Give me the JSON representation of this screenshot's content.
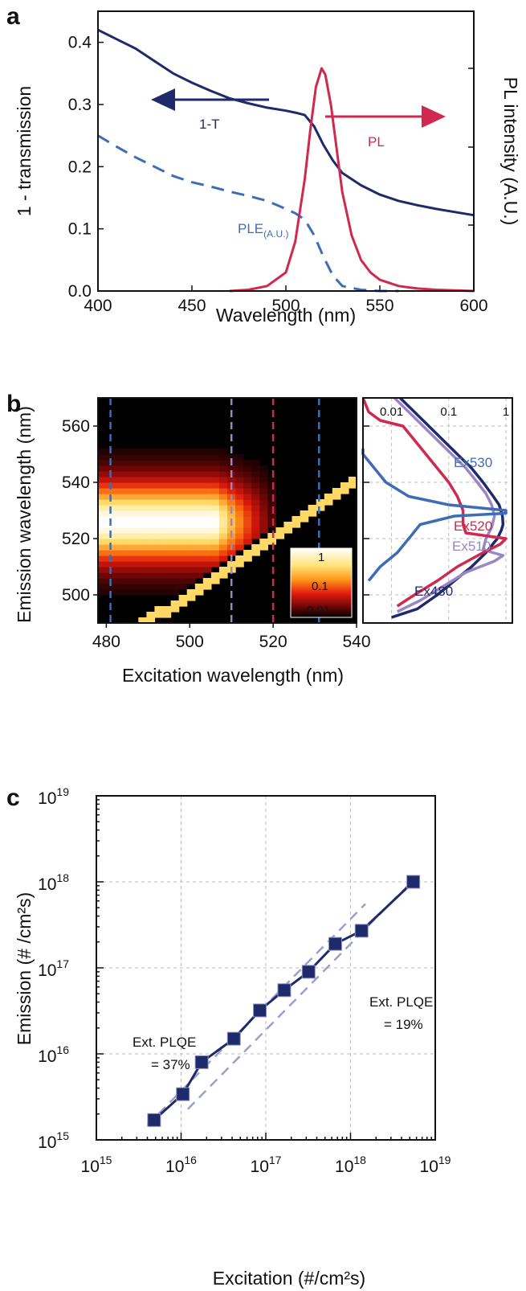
{
  "colors": {
    "navy": "#1f2a6b",
    "crimson": "#d0284f",
    "steel": "#3f6db5",
    "lavender": "#9a86c4",
    "purple": "#a78fd0"
  },
  "chart_data": [
    {
      "panel": "a",
      "type": "line",
      "xlabel": "Wavelength (nm)",
      "ylabel": "1 - transmission",
      "ylabel_right": "PL intensity (A.U.)",
      "xlim": [
        400,
        600
      ],
      "ylim": [
        0,
        0.45
      ],
      "x_ticks": [
        "400",
        "450",
        "500",
        "550",
        "600"
      ],
      "y_ticks": [
        "0.0",
        "0.1",
        "0.2",
        "0.3",
        "0.4"
      ],
      "series": [
        {
          "name": "1-T",
          "x": [
            400,
            410,
            420,
            430,
            440,
            450,
            460,
            470,
            480,
            490,
            500,
            505,
            510,
            515,
            520,
            525,
            530,
            540,
            550,
            560,
            570,
            580,
            590,
            600
          ],
          "y": [
            0.42,
            0.405,
            0.39,
            0.37,
            0.35,
            0.335,
            0.322,
            0.31,
            0.302,
            0.295,
            0.29,
            0.287,
            0.283,
            0.265,
            0.235,
            0.21,
            0.19,
            0.17,
            0.155,
            0.145,
            0.138,
            0.132,
            0.127,
            0.122
          ]
        },
        {
          "name": "PLE",
          "x": [
            400,
            410,
            420,
            430,
            440,
            450,
            460,
            470,
            480,
            490,
            500,
            505,
            510,
            515,
            520,
            525,
            530,
            540,
            550,
            560
          ],
          "y": [
            0.25,
            0.232,
            0.215,
            0.2,
            0.185,
            0.175,
            0.168,
            0.16,
            0.153,
            0.145,
            0.132,
            0.125,
            0.115,
            0.09,
            0.055,
            0.025,
            0.008,
            0.002,
            0.0,
            0.0
          ]
        },
        {
          "name": "PL",
          "x": [
            470,
            480,
            490,
            500,
            505,
            510,
            513,
            516,
            519,
            521,
            524,
            527,
            530,
            535,
            540,
            545,
            550,
            560,
            570,
            580,
            590,
            600
          ],
          "y": [
            0.0,
            0.002,
            0.008,
            0.03,
            0.08,
            0.18,
            0.26,
            0.33,
            0.36,
            0.35,
            0.3,
            0.23,
            0.16,
            0.09,
            0.05,
            0.03,
            0.018,
            0.008,
            0.004,
            0.002,
            0.001,
            0.0
          ]
        }
      ],
      "annotations": {
        "t_label": "1-T",
        "pl_label": "PL",
        "ple_label": "PLE",
        "ple_sub": "(A.U.)"
      }
    },
    {
      "panel": "b",
      "type": "heatmap",
      "xlabel": "Excitation wavelength (nm)",
      "ylabel": "Emission wavelength (nm)",
      "xlim": [
        478,
        540
      ],
      "ylim": [
        490,
        570
      ],
      "x_ticks": [
        "480",
        "500",
        "520",
        "540"
      ],
      "y_ticks": [
        "500",
        "520",
        "540",
        "560"
      ],
      "colorbar_ticks": [
        "1",
        "0.1",
        "0.01"
      ],
      "dashed_excitations": [
        481,
        510,
        520,
        531
      ],
      "side_x_ticks": [
        "0.01",
        "0.1",
        "1"
      ],
      "side_series": [
        {
          "name": "Ex480",
          "emission": [
            492,
            495,
            500,
            505,
            510,
            515,
            520,
            523,
            525,
            528,
            532,
            535,
            540,
            545,
            550,
            555,
            560,
            565,
            570
          ],
          "log_intensity": [
            -2,
            -1.55,
            -1.2,
            -0.9,
            -0.6,
            -0.35,
            -0.15,
            -0.08,
            -0.05,
            -0.06,
            -0.12,
            -0.22,
            -0.4,
            -0.6,
            -0.85,
            -1.1,
            -1.35,
            -1.6,
            -1.85
          ]
        },
        {
          "name": "Ex510",
          "emission": [
            494,
            498,
            503,
            508,
            512,
            514,
            516,
            520,
            524,
            528,
            532,
            536,
            540,
            545,
            550,
            555,
            560,
            565,
            570
          ],
          "log_intensity": [
            -1.9,
            -1.5,
            -1.1,
            -0.7,
            -0.2,
            -0.05,
            -0.4,
            -0.35,
            -0.25,
            -0.2,
            -0.25,
            -0.35,
            -0.5,
            -0.7,
            -0.95,
            -1.2,
            -1.45,
            -1.7,
            -1.95
          ]
        },
        {
          "name": "Ex520",
          "emission": [
            496,
            500,
            505,
            510,
            515,
            518,
            520,
            522,
            525,
            530,
            535,
            540,
            545,
            550,
            555,
            560,
            562,
            565,
            570
          ],
          "log_intensity": [
            -1.9,
            -1.6,
            -1.2,
            -0.85,
            -0.4,
            -0.1,
            0,
            -0.7,
            -0.75,
            -0.75,
            -0.85,
            -1.0,
            -1.2,
            -1.4,
            -1.6,
            -1.8,
            -2.2,
            -2.4,
            -2.5
          ]
        },
        {
          "name": "Ex530",
          "emission": [
            505,
            510,
            515,
            520,
            525,
            528,
            529,
            530,
            532,
            535,
            540,
            545,
            550,
            552
          ],
          "log_intensity": [
            -2.4,
            -2.2,
            -1.9,
            -1.7,
            -1.5,
            -0.9,
            0,
            0,
            -1.0,
            -1.7,
            -2.1,
            -2.3,
            -2.5,
            -2.5
          ]
        }
      ]
    },
    {
      "panel": "c",
      "type": "scatter",
      "xlabel": "Excitation (#/cm²s)",
      "ylabel": "Emission (# /cm²s)",
      "xlim": [
        1000000000000000.0,
        1e+19
      ],
      "ylim": [
        1000000000000000.0,
        1e+19
      ],
      "x_ticks": [
        "15",
        "16",
        "17",
        "18",
        "19"
      ],
      "y_ticks": [
        "15",
        "16",
        "17",
        "18",
        "19"
      ],
      "x": [
        4800000000000000.0,
        1.05e+16,
        1.75e+16,
        4.2e+16,
        8.5e+16,
        1.65e+17,
        3.2e+17,
        6.6e+17,
        1.35e+18,
        5.5e+18
      ],
      "y": [
        1700000000000000.0,
        3400000000000000.0,
        8000000000000000.0,
        1.5e+16,
        3.2e+16,
        5.5e+16,
        9e+16,
        1.9e+17,
        2.7e+17,
        1e+18
      ],
      "fit_lines": [
        {
          "name": "Ext. PLQE = 37%",
          "efficiency": 0.37
        },
        {
          "name": "Ext. PLQE = 19%",
          "efficiency": 0.19
        }
      ],
      "annotations": {
        "left_l1": "Ext. PLQE",
        "left_l2": "= 37%",
        "right_l1": "Ext. PLQE",
        "right_l2": "= 19%"
      }
    }
  ],
  "panel_labels": {
    "a": "a",
    "b": "b",
    "c": "c"
  }
}
